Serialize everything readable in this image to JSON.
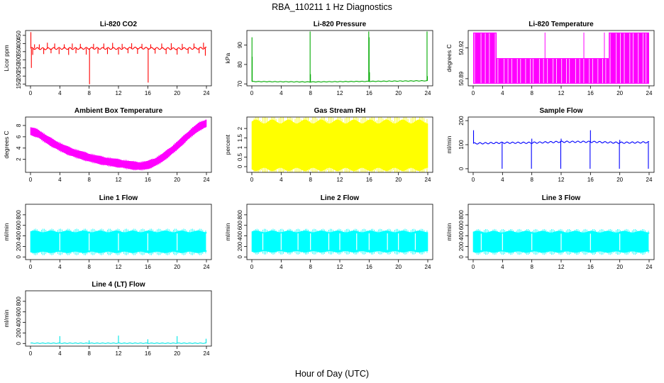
{
  "figure": {
    "title": "RBA_110211  1 Hz Diagnostics",
    "xlabel": "Hour of Day (UTC)"
  },
  "chart_data": [
    {
      "type": "line",
      "title": "Li-820 CO2",
      "ylabel": "Licor ppm",
      "color": "#ff0000",
      "x_ticks": [
        0,
        4,
        8,
        12,
        16,
        20,
        24
      ],
      "y_ticks": [
        150,
        200,
        250,
        300,
        350,
        400,
        450
      ],
      "xlim": [
        0,
        24
      ],
      "ylim": [
        140,
        480
      ],
      "baseline": {
        "x": [
          0,
          2,
          4,
          6,
          8,
          10,
          12,
          14,
          16,
          18,
          20,
          22,
          24
        ],
        "y": [
          370,
          368,
          370,
          369,
          371,
          370,
          369,
          372,
          371,
          369,
          368,
          370,
          372
        ]
      },
      "spread": 10,
      "spikes": [
        {
          "x": 0.05,
          "y": 470
        },
        {
          "x": 0.12,
          "y": 250
        },
        {
          "x": 0.3,
          "y": 330
        },
        {
          "x": 0.55,
          "y": 395
        },
        {
          "x": 1.2,
          "y": 395
        },
        {
          "x": 1.8,
          "y": 335
        },
        {
          "x": 2.3,
          "y": 405
        },
        {
          "x": 2.8,
          "y": 340
        },
        {
          "x": 3.3,
          "y": 400
        },
        {
          "x": 3.9,
          "y": 335
        },
        {
          "x": 4.6,
          "y": 395
        },
        {
          "x": 5.2,
          "y": 330
        },
        {
          "x": 5.7,
          "y": 400
        },
        {
          "x": 6.2,
          "y": 340
        },
        {
          "x": 6.8,
          "y": 398
        },
        {
          "x": 7.6,
          "y": 332
        },
        {
          "x": 8.05,
          "y": 150
        },
        {
          "x": 8.6,
          "y": 398
        },
        {
          "x": 9.2,
          "y": 338
        },
        {
          "x": 10.0,
          "y": 400
        },
        {
          "x": 10.5,
          "y": 335
        },
        {
          "x": 11.2,
          "y": 404
        },
        {
          "x": 12.0,
          "y": 332
        },
        {
          "x": 12.5,
          "y": 398
        },
        {
          "x": 13.3,
          "y": 340
        },
        {
          "x": 13.8,
          "y": 402
        },
        {
          "x": 14.6,
          "y": 336
        },
        {
          "x": 15.2,
          "y": 398
        },
        {
          "x": 16.05,
          "y": 160
        },
        {
          "x": 16.4,
          "y": 395
        },
        {
          "x": 17.0,
          "y": 338
        },
        {
          "x": 17.9,
          "y": 400
        },
        {
          "x": 18.5,
          "y": 335
        },
        {
          "x": 19.2,
          "y": 402
        },
        {
          "x": 20.0,
          "y": 332
        },
        {
          "x": 20.7,
          "y": 398
        },
        {
          "x": 21.5,
          "y": 338
        },
        {
          "x": 22.3,
          "y": 400
        },
        {
          "x": 23.0,
          "y": 340
        },
        {
          "x": 23.6,
          "y": 405
        },
        {
          "x": 23.85,
          "y": 325
        }
      ]
    },
    {
      "type": "line",
      "title": "Li-820 Pressure",
      "ylabel": "kPa",
      "color": "#00aa00",
      "x_ticks": [
        0,
        4,
        8,
        12,
        16,
        20,
        24
      ],
      "y_ticks": [
        70,
        80,
        90
      ],
      "xlim": [
        0,
        24
      ],
      "ylim": [
        69,
        97.5
      ],
      "baseline": {
        "x": [
          0,
          8,
          16,
          24
        ],
        "y": [
          71.2,
          71.0,
          71.3,
          71.6
        ]
      },
      "spread": 0.2,
      "spikes": [
        {
          "x": 0.02,
          "y": 94
        },
        {
          "x": 0.05,
          "y": 84
        },
        {
          "x": 7.95,
          "y": 97
        },
        {
          "x": 8.0,
          "y": 75
        },
        {
          "x": 15.95,
          "y": 97
        },
        {
          "x": 16.0,
          "y": 94
        },
        {
          "x": 16.05,
          "y": 76
        },
        {
          "x": 23.9,
          "y": 97
        },
        {
          "x": 23.95,
          "y": 74
        }
      ]
    },
    {
      "type": "binary",
      "title": "Li-820 Temperature",
      "ylabel": "degrees C",
      "color": "#ff00ff",
      "x_ticks": [
        0,
        4,
        8,
        12,
        16,
        20,
        24
      ],
      "y_ticks": [
        50.89,
        50.92
      ],
      "xlim": [
        0,
        24
      ],
      "ylim": [
        50.883,
        50.937
      ],
      "levels": [
        50.885,
        50.91,
        50.935
      ],
      "segments": [
        {
          "x0": 0,
          "x1": 3.2,
          "low": 50.885,
          "high": 50.935
        },
        {
          "x0": 3.2,
          "x1": 8.0,
          "low": 50.885,
          "high": 50.91
        },
        {
          "x0": 8.0,
          "x1": 18.5,
          "low": 50.885,
          "high": 50.91
        },
        {
          "x0": 18.5,
          "x1": 24,
          "low": 50.885,
          "high": 50.935
        }
      ],
      "spikes": [
        {
          "x": 9.8,
          "y": 50.935
        },
        {
          "x": 15.1,
          "y": 50.935
        },
        {
          "x": 17.9,
          "y": 50.935
        },
        {
          "x": 18.6,
          "y": 50.935
        }
      ]
    },
    {
      "type": "band",
      "title": "Ambient Box Temperature",
      "ylabel": "degrees C",
      "color": "#ff00ff",
      "x_ticks": [
        0,
        4,
        8,
        12,
        16,
        20,
        24
      ],
      "y_ticks": [
        2,
        4,
        6,
        8
      ],
      "xlim": [
        0,
        24
      ],
      "ylim": [
        -0.3,
        9.5
      ],
      "x": [
        0,
        1,
        2,
        3,
        4,
        5,
        6,
        7,
        8,
        9,
        10,
        11,
        12,
        13,
        14,
        15,
        16,
        17,
        18,
        19,
        20,
        21,
        22,
        23,
        24
      ],
      "center": [
        7.0,
        6.6,
        5.7,
        4.9,
        4.2,
        3.6,
        3.1,
        2.7,
        2.3,
        2.0,
        1.7,
        1.5,
        1.3,
        1.1,
        0.9,
        0.8,
        1.0,
        1.5,
        2.3,
        3.3,
        4.4,
        5.6,
        6.8,
        7.8,
        8.4
      ],
      "halfwidth": [
        0.6,
        0.6,
        0.6,
        0.6,
        0.6,
        0.6,
        0.6,
        0.6,
        0.6,
        0.6,
        0.6,
        0.6,
        0.6,
        0.6,
        0.6,
        0.6,
        0.6,
        0.6,
        0.6,
        0.6,
        0.6,
        0.6,
        0.6,
        0.6,
        0.6
      ]
    },
    {
      "type": "band",
      "title": "Gas Stream RH",
      "ylabel": "percent",
      "color": "#ffff00",
      "x_ticks": [
        0,
        4,
        8,
        12,
        16,
        20,
        24
      ],
      "y_ticks": [
        0.0,
        0.5,
        1.0,
        1.5,
        2.0
      ],
      "xlim": [
        0,
        24
      ],
      "ylim": [
        -0.3,
        2.6
      ],
      "x": [
        0,
        24
      ],
      "center": [
        1.1,
        1.1
      ],
      "halfwidth": [
        1.15,
        1.15
      ]
    },
    {
      "type": "line",
      "title": "Sample Flow",
      "ylabel": "ml/min",
      "color": "#0000ff",
      "x_ticks": [
        0,
        4,
        8,
        12,
        16,
        20,
        24
      ],
      "y_ticks": [
        0,
        100,
        200
      ],
      "xlim": [
        0,
        24
      ],
      "ylim": [
        -15,
        215
      ],
      "baseline": {
        "x": [
          0,
          4,
          8,
          12,
          16,
          20,
          24
        ],
        "y": [
          105,
          108,
          108,
          112,
          112,
          108,
          110
        ]
      },
      "spread": 5,
      "spikes": [
        {
          "x": 0.05,
          "y": 160
        },
        {
          "x": 3.95,
          "y": 0
        },
        {
          "x": 7.95,
          "y": 0
        },
        {
          "x": 8.0,
          "y": 125
        },
        {
          "x": 11.95,
          "y": 0
        },
        {
          "x": 12.0,
          "y": 125
        },
        {
          "x": 15.95,
          "y": 0
        },
        {
          "x": 16.0,
          "y": 160
        },
        {
          "x": 19.95,
          "y": 0
        },
        {
          "x": 20.0,
          "y": 120
        },
        {
          "x": 23.9,
          "y": 0
        }
      ]
    },
    {
      "type": "band",
      "title": "Line 1 Flow",
      "ylabel": "ml/min",
      "color": "#00ffff",
      "x_ticks": [
        0,
        4,
        8,
        12,
        16,
        20,
        24
      ],
      "y_ticks": [
        0,
        200,
        400,
        600,
        800
      ],
      "xlim": [
        0,
        24
      ],
      "ylim": [
        -50,
        1000
      ],
      "x": [
        0,
        24
      ],
      "center": [
        285,
        285
      ],
      "halfwidth": [
        180,
        180
      ],
      "gaps": [
        4,
        8,
        12,
        16,
        20,
        24
      ]
    },
    {
      "type": "band",
      "title": "Line 2 Flow",
      "ylabel": "ml/min",
      "color": "#00ffff",
      "x_ticks": [
        0,
        4,
        8,
        12,
        16,
        20,
        24
      ],
      "y_ticks": [
        0,
        200,
        400,
        600,
        800
      ],
      "xlim": [
        0,
        24
      ],
      "ylim": [
        -50,
        1000
      ],
      "x": [
        0,
        24
      ],
      "center": [
        290,
        290
      ],
      "halfwidth": [
        175,
        175
      ],
      "gaps": [
        1.5,
        4,
        6.3,
        8,
        10.5,
        12,
        14.3,
        16,
        18.5,
        20,
        22.3
      ]
    },
    {
      "type": "band",
      "title": "Line 3 Flow",
      "ylabel": "ml/min",
      "color": "#00ffff",
      "x_ticks": [
        0,
        4,
        8,
        12,
        16,
        20,
        24
      ],
      "y_ticks": [
        0,
        200,
        400,
        600,
        800
      ],
      "xlim": [
        0,
        24
      ],
      "ylim": [
        -50,
        1000
      ],
      "x": [
        0,
        24
      ],
      "center": [
        285,
        285
      ],
      "halfwidth": [
        175,
        175
      ],
      "gaps": [
        1.1,
        4,
        8,
        12,
        16,
        20,
        24
      ]
    },
    {
      "type": "line",
      "title": "Line 4 (LT) Flow",
      "ylabel": "ml/min",
      "color": "#00e5e5",
      "x_ticks": [
        0,
        4,
        8,
        12,
        16,
        20,
        24
      ],
      "y_ticks": [
        0,
        200,
        400,
        600,
        800
      ],
      "xlim": [
        0,
        24
      ],
      "ylim": [
        -50,
        1000
      ],
      "baseline": {
        "x": [
          0,
          24
        ],
        "y": [
          5,
          5
        ]
      },
      "spread": 8,
      "spikes": [
        {
          "x": 4.0,
          "y": 140
        },
        {
          "x": 8.0,
          "y": 60
        },
        {
          "x": 12.0,
          "y": 150
        },
        {
          "x": 16.0,
          "y": 80
        },
        {
          "x": 20.0,
          "y": 140
        },
        {
          "x": 23.95,
          "y": 90
        }
      ]
    }
  ]
}
